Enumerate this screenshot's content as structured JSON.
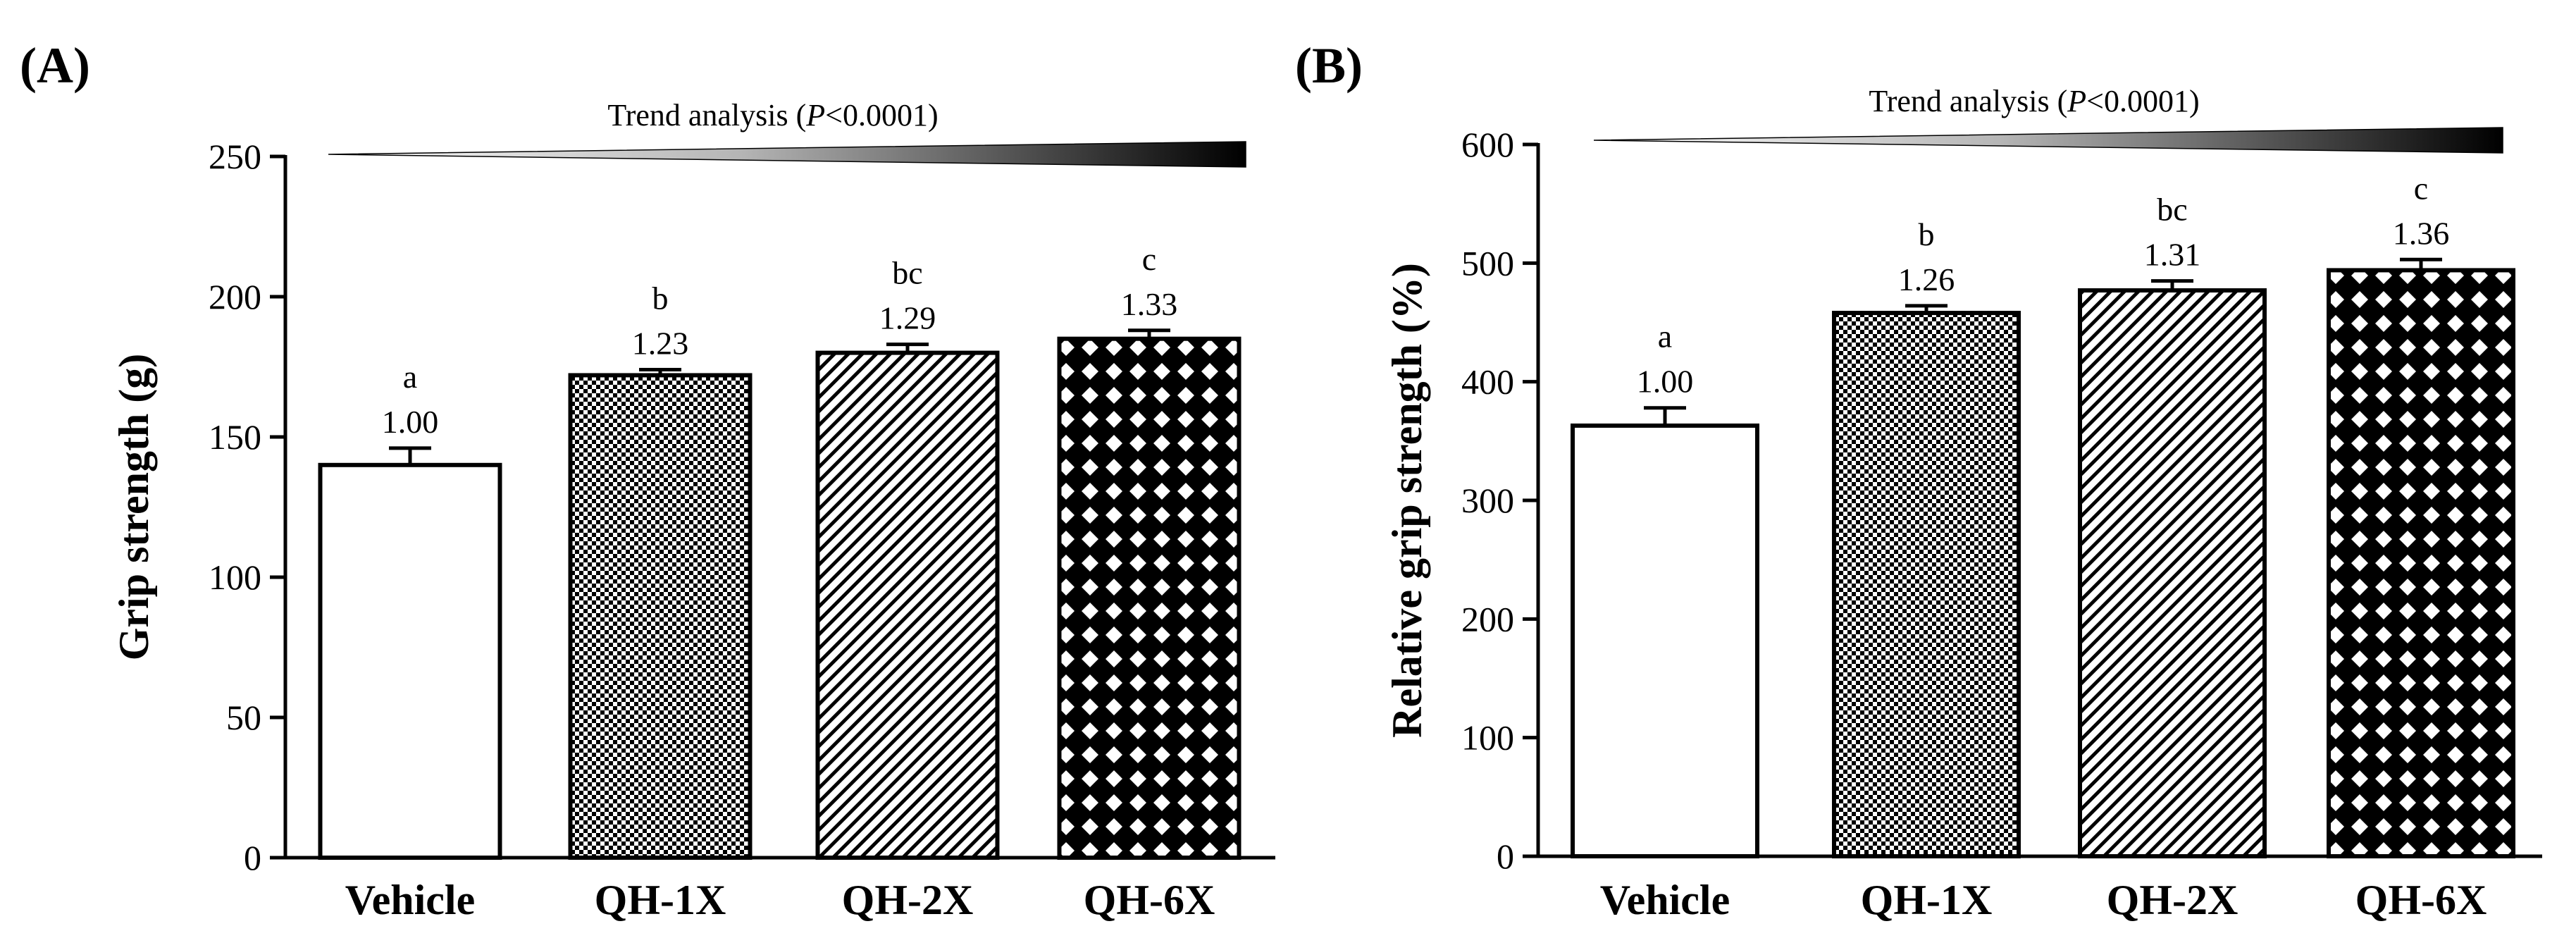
{
  "figure": {
    "panels": [
      "(A)",
      "(B)"
    ]
  },
  "chart_data": [
    {
      "type": "bar",
      "panel_label": "(A)",
      "categories": [
        "Vehicle",
        "QH-1X",
        "QH-2X",
        "QH-6X"
      ],
      "values": [
        140,
        172,
        180,
        185
      ],
      "errors": [
        6,
        2,
        3,
        3
      ],
      "letters": [
        "a",
        "b",
        "bc",
        "c"
      ],
      "ratios": [
        "1.00",
        "1.23",
        "1.29",
        "1.33"
      ],
      "patterns": [
        "blank",
        "checker",
        "diagonal",
        "lattice"
      ],
      "ylabel": "Grip strength (g)",
      "xlabel": "",
      "ylim": [
        0,
        250
      ],
      "yticks": [
        0,
        50,
        100,
        150,
        200,
        250
      ],
      "trend": {
        "prefix": "Trend analysis (",
        "p": "P",
        "suffix": "<0.0001)"
      }
    },
    {
      "type": "bar",
      "panel_label": "(B)",
      "categories": [
        "Vehicle",
        "QH-1X",
        "QH-2X",
        "QH-6X"
      ],
      "values": [
        363,
        458,
        477,
        494
      ],
      "errors": [
        15,
        6,
        8,
        9
      ],
      "letters": [
        "a",
        "b",
        "bc",
        "c"
      ],
      "ratios": [
        "1.00",
        "1.26",
        "1.31",
        "1.36"
      ],
      "patterns": [
        "blank",
        "checker",
        "diagonal",
        "lattice"
      ],
      "ylabel": "Relative grip strength (%)",
      "xlabel": "",
      "ylim": [
        0,
        600
      ],
      "yticks": [
        0,
        100,
        200,
        300,
        400,
        500,
        600
      ],
      "trend": {
        "prefix": "Trend analysis (",
        "p": "P",
        "suffix": "<0.0001)"
      }
    }
  ]
}
